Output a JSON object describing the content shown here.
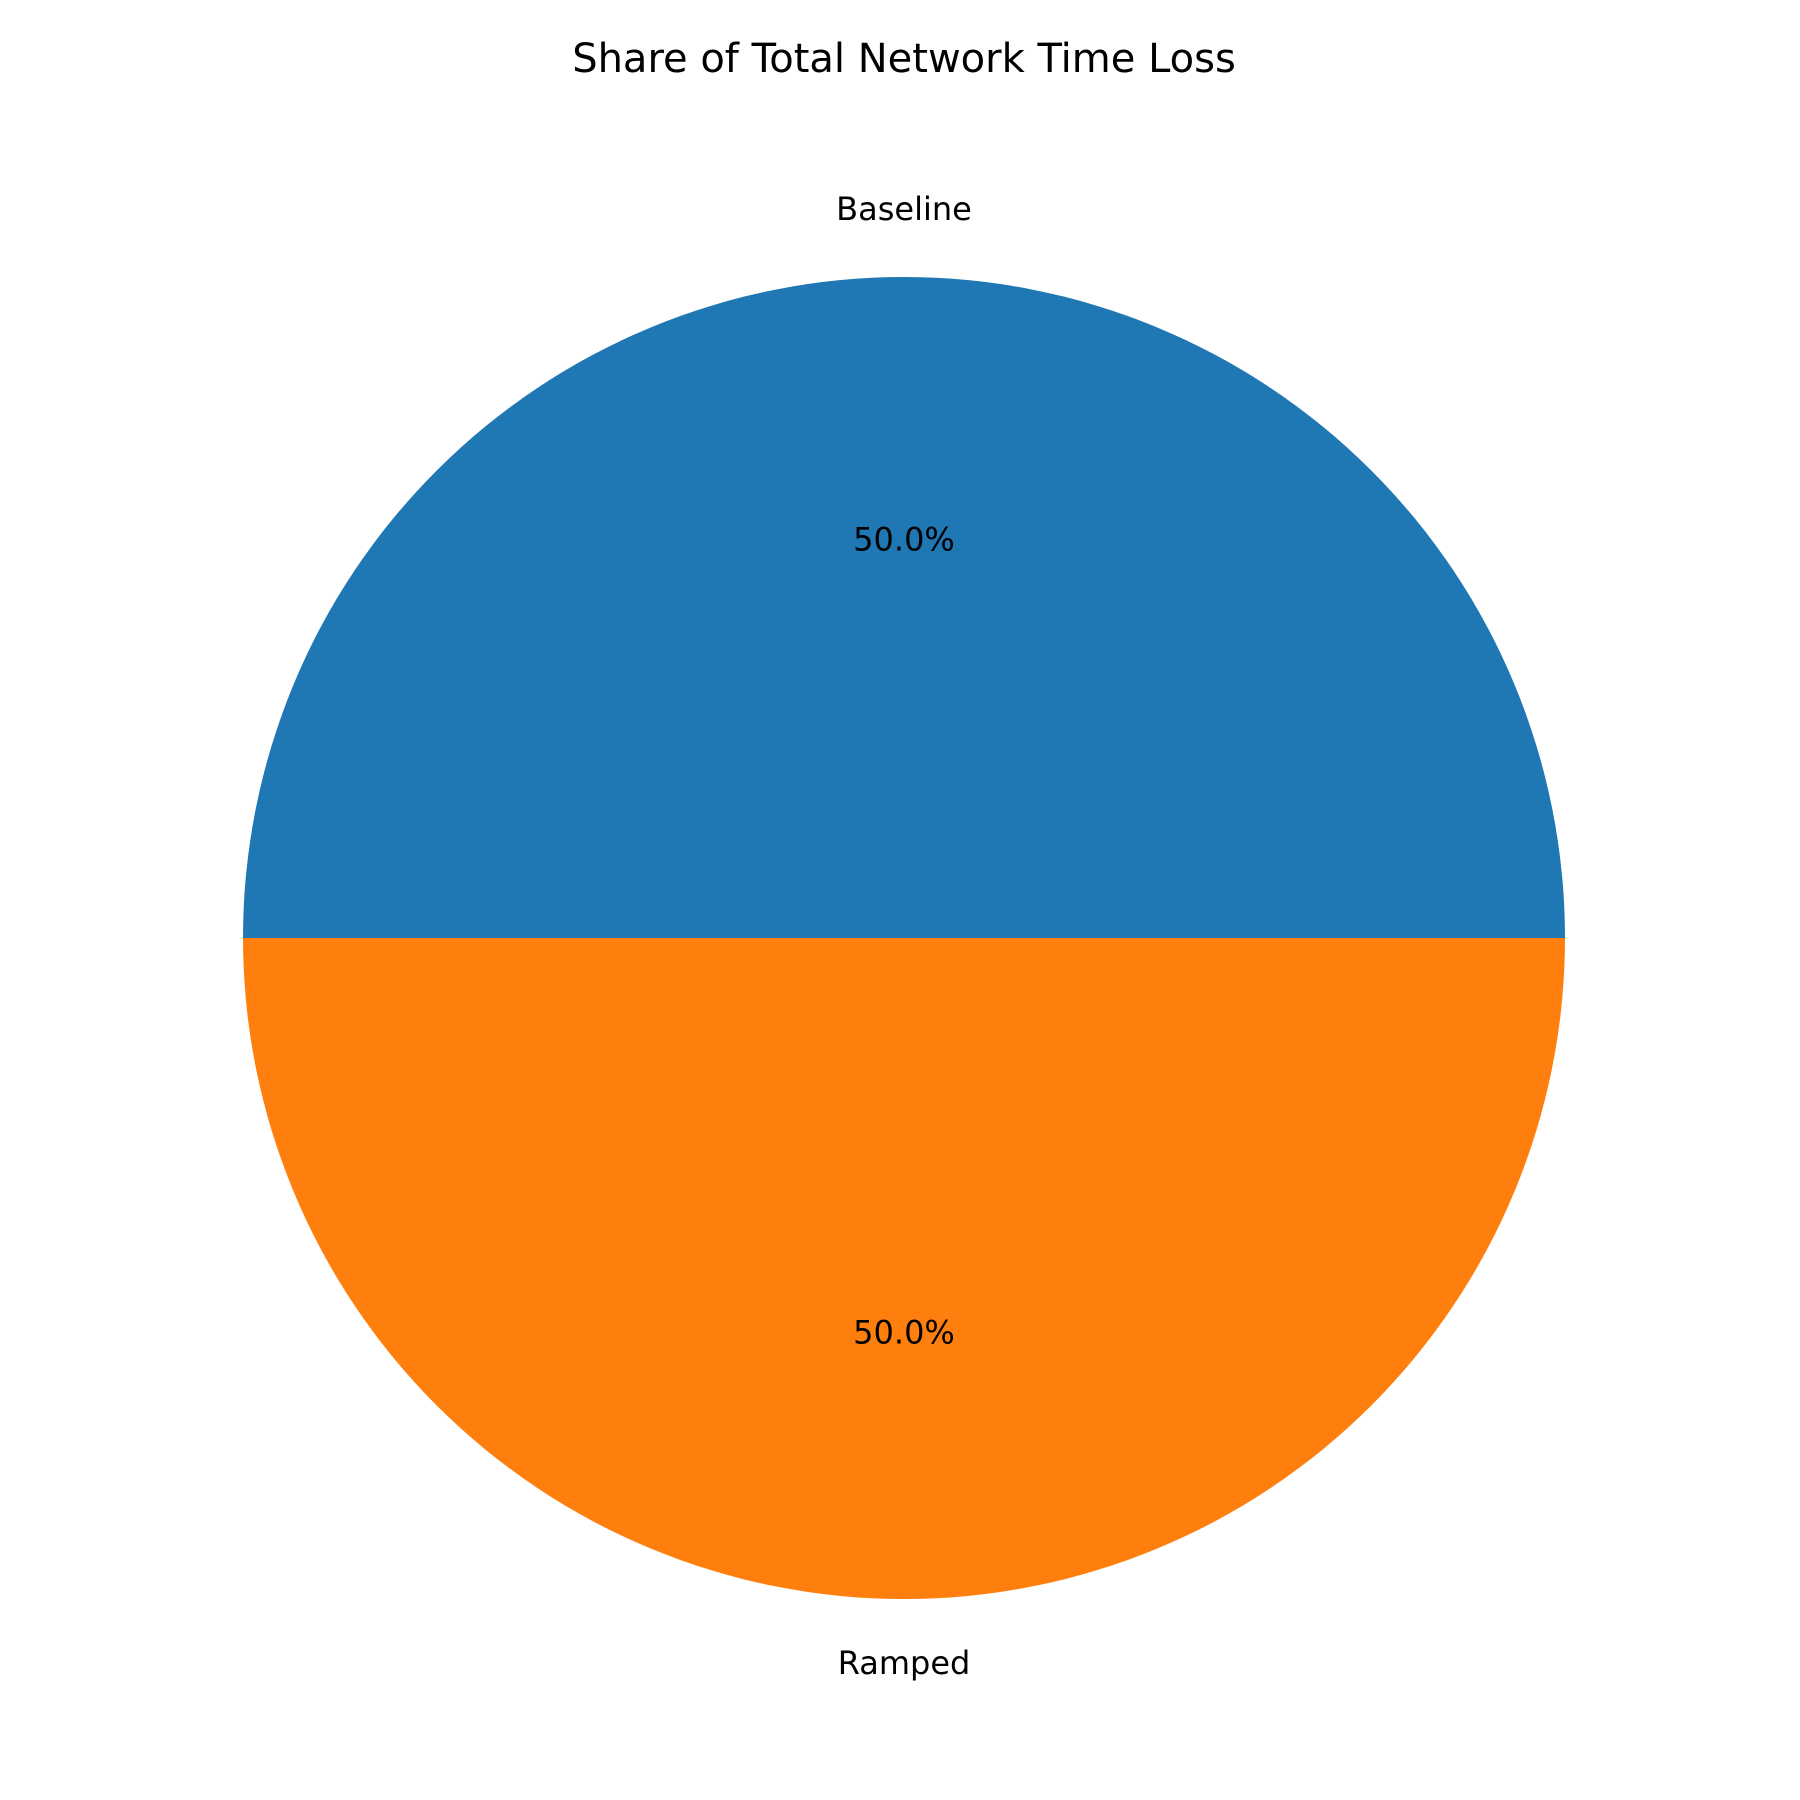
{
  "chart_data": {
    "type": "pie",
    "title": "Share of Total Network Time Loss",
    "start_angle_deg": 0,
    "direction": "counterclockwise",
    "slices": [
      {
        "label": "Baseline",
        "value": 50.0,
        "pct_label": "50.0%",
        "color": "#1f77b4"
      },
      {
        "label": "Ramped",
        "value": 50.0,
        "pct_label": "50.0%",
        "color": "#ff7f0e"
      }
    ]
  }
}
